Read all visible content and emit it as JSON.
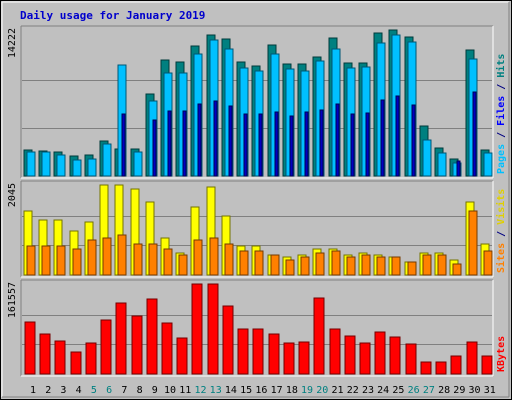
{
  "title": "Daily usage for January 2019",
  "chart_data": [
    {
      "type": "bar",
      "panel": "hits-files-pages",
      "side_label": [
        {
          "text": "Pages",
          "color": "#00c0ff"
        },
        {
          "text": " / ",
          "color": "#000080"
        },
        {
          "text": "Files",
          "color": "#0000ff"
        },
        {
          "text": " / ",
          "color": "#000080"
        },
        {
          "text": "Hits",
          "color": "#008080"
        }
      ],
      "max_label": "14222",
      "ylim": [
        0,
        14222
      ],
      "categories": [
        "1",
        "2",
        "3",
        "4",
        "5",
        "6",
        "7",
        "8",
        "9",
        "10",
        "11",
        "12",
        "13",
        "14",
        "15",
        "16",
        "17",
        "18",
        "19",
        "20",
        "21",
        "22",
        "23",
        "24",
        "25",
        "26",
        "27",
        "28",
        "29",
        "30",
        "31"
      ],
      "series": [
        {
          "name": "Hits",
          "color": "#008080",
          "values": [
            2500,
            2400,
            2300,
            1900,
            2000,
            3400,
            2600,
            2600,
            8000,
            11300,
            11100,
            12700,
            13700,
            13300,
            11100,
            10700,
            12800,
            10900,
            10900,
            11600,
            13400,
            11000,
            11000,
            13900,
            14200,
            13500,
            4900,
            2700,
            1700,
            12300,
            2500
          ]
        },
        {
          "name": "Files",
          "color": "#00c0ff",
          "values": [
            2300,
            2300,
            2000,
            1600,
            1700,
            3100,
            10800,
            2300,
            7300,
            10000,
            10000,
            11900,
            13200,
            12400,
            10500,
            10200,
            11900,
            10400,
            10200,
            11200,
            12400,
            10500,
            10600,
            13000,
            13700,
            13100,
            3500,
            2200,
            1300,
            11400,
            2200
          ]
        },
        {
          "name": "Pages",
          "color": "#0000c0",
          "values": [
            0,
            0,
            0,
            0,
            0,
            0,
            6000,
            0,
            5500,
            6300,
            6300,
            7000,
            7300,
            6800,
            6000,
            6000,
            6200,
            5800,
            6200,
            6400,
            7000,
            6000,
            6100,
            7400,
            7800,
            6900,
            0,
            0,
            1500,
            8200,
            0
          ]
        }
      ]
    },
    {
      "type": "bar",
      "panel": "visits-sites",
      "side_label": [
        {
          "text": "Sites",
          "color": "#ff8000"
        },
        {
          "text": " / ",
          "color": "#000080"
        },
        {
          "text": "Visits",
          "color": "#e0d000"
        }
      ],
      "max_label": "2045",
      "ylim": [
        0,
        2045
      ],
      "categories": [
        "1",
        "2",
        "3",
        "4",
        "5",
        "6",
        "7",
        "8",
        "9",
        "10",
        "11",
        "12",
        "13",
        "14",
        "15",
        "16",
        "17",
        "18",
        "19",
        "20",
        "21",
        "22",
        "23",
        "24",
        "25",
        "26",
        "27",
        "28",
        "29",
        "30",
        "31"
      ],
      "series": [
        {
          "name": "Visits",
          "color": "#ffff00",
          "values": [
            1450,
            1250,
            1250,
            1000,
            1200,
            2045,
            2045,
            1950,
            1650,
            850,
            500,
            1550,
            2000,
            1350,
            650,
            650,
            450,
            400,
            450,
            600,
            600,
            450,
            500,
            450,
            400,
            300,
            500,
            500,
            350,
            1650,
            700
          ]
        },
        {
          "name": "Sites",
          "color": "#ff8000",
          "values": [
            650,
            650,
            650,
            600,
            800,
            850,
            900,
            700,
            700,
            600,
            450,
            800,
            850,
            700,
            550,
            550,
            450,
            350,
            400,
            500,
            550,
            400,
            450,
            400,
            400,
            300,
            450,
            450,
            250,
            1450,
            550
          ]
        }
      ]
    },
    {
      "type": "bar",
      "panel": "kbytes",
      "side_label": [
        {
          "text": "KBytes",
          "color": "#ff0000"
        }
      ],
      "max_label": "161557",
      "ylim": [
        0,
        161557
      ],
      "categories": [
        "1",
        "2",
        "3",
        "4",
        "5",
        "6",
        "7",
        "8",
        "9",
        "10",
        "11",
        "12",
        "13",
        "14",
        "15",
        "16",
        "17",
        "18",
        "19",
        "20",
        "21",
        "22",
        "23",
        "24",
        "25",
        "26",
        "27",
        "28",
        "29",
        "30",
        "31"
      ],
      "series": [
        {
          "name": "KBytes",
          "color": "#ff0000",
          "values": [
            93000,
            71000,
            59000,
            39000,
            55000,
            97000,
            128000,
            104000,
            135000,
            92000,
            64000,
            161557,
            161557,
            122000,
            80000,
            80000,
            72000,
            56000,
            58000,
            137000,
            80000,
            69000,
            56000,
            75000,
            66000,
            54000,
            21000,
            22000,
            33000,
            58000,
            33000
          ]
        }
      ]
    }
  ],
  "day_colors": [
    "#000000",
    "#000000",
    "#000000",
    "#000000",
    "#008080",
    "#008080",
    "#000000",
    "#000000",
    "#000000",
    "#000000",
    "#000000",
    "#008080",
    "#008080",
    "#000000",
    "#000000",
    "#000000",
    "#000000",
    "#000000",
    "#008080",
    "#008080",
    "#000000",
    "#000000",
    "#000000",
    "#000000",
    "#000000",
    "#008080",
    "#008080",
    "#000000",
    "#000000",
    "#000000",
    "#000000"
  ]
}
